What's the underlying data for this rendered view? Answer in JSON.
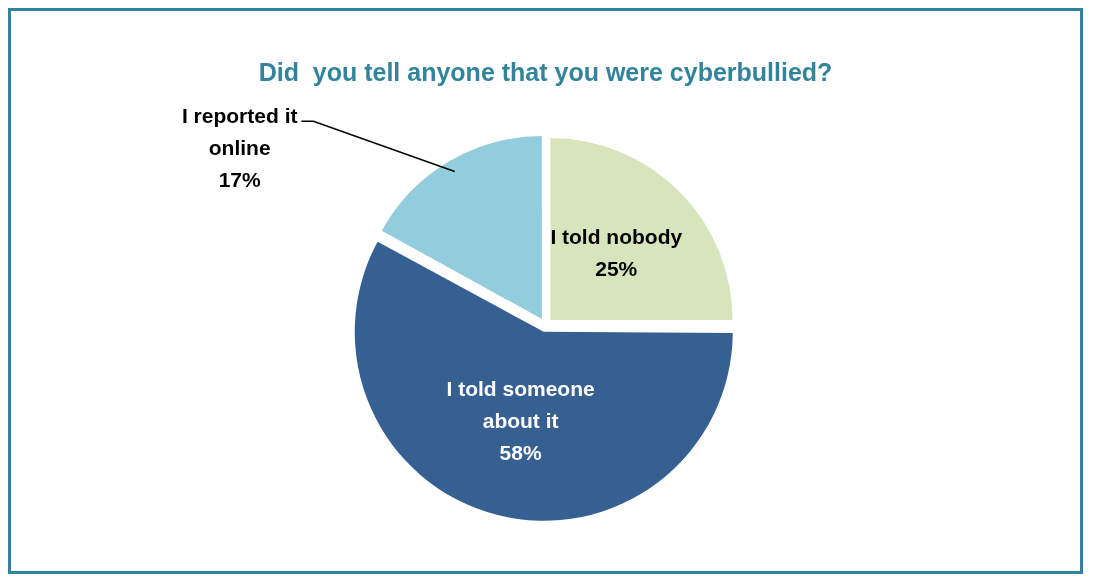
{
  "chart_data": {
    "type": "pie",
    "title": "Did  you tell anyone that you were cyberbullied?",
    "categories": [
      "I told nobody",
      "I told someone about it",
      "I reported it online"
    ],
    "values": [
      25,
      58,
      17
    ],
    "colors": [
      "#d8e4bc",
      "#366092",
      "#93cddd"
    ],
    "value_labels": [
      "25%",
      "58%",
      "17%"
    ],
    "legend": false
  }
}
